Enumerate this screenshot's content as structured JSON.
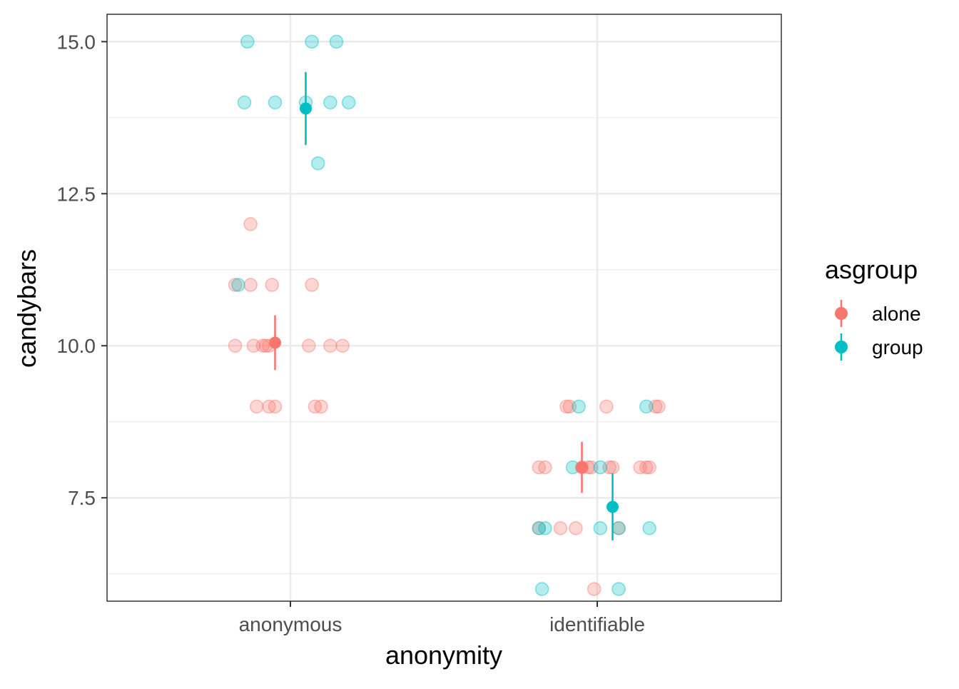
{
  "chart_data": {
    "type": "scatter",
    "xlabel": "anonymity",
    "ylabel": "candybars",
    "categories": [
      "anonymous",
      "identifiable"
    ],
    "ylim": [
      5.8,
      15.45
    ],
    "y_ticks": [
      7.5,
      10.0,
      12.5,
      15.0
    ],
    "y_tick_labels": [
      "7.5",
      "10.0",
      "12.5",
      "15.0"
    ],
    "grid": true,
    "legend": {
      "title": "asgroup",
      "position": "right"
    },
    "series": [
      {
        "name": "alone",
        "color": "#F8766D",
        "dodge": -0.05,
        "points": [
          {
            "x": "anonymous",
            "jitter": -0.18,
            "y": 11
          },
          {
            "x": "anonymous",
            "jitter": -0.13,
            "y": 12
          },
          {
            "x": "anonymous",
            "jitter": -0.13,
            "y": 11
          },
          {
            "x": "anonymous",
            "jitter": -0.06,
            "y": 11
          },
          {
            "x": "anonymous",
            "jitter": 0.07,
            "y": 11
          },
          {
            "x": "anonymous",
            "jitter": -0.18,
            "y": 10
          },
          {
            "x": "anonymous",
            "jitter": -0.12,
            "y": 10
          },
          {
            "x": "anonymous",
            "jitter": -0.09,
            "y": 10
          },
          {
            "x": "anonymous",
            "jitter": -0.08,
            "y": 10
          },
          {
            "x": "anonymous",
            "jitter": -0.07,
            "y": 10
          },
          {
            "x": "anonymous",
            "jitter": 0.06,
            "y": 10
          },
          {
            "x": "anonymous",
            "jitter": 0.13,
            "y": 10
          },
          {
            "x": "anonymous",
            "jitter": 0.17,
            "y": 10
          },
          {
            "x": "anonymous",
            "jitter": -0.11,
            "y": 9
          },
          {
            "x": "anonymous",
            "jitter": -0.07,
            "y": 9
          },
          {
            "x": "anonymous",
            "jitter": -0.05,
            "y": 9
          },
          {
            "x": "anonymous",
            "jitter": 0.08,
            "y": 9
          },
          {
            "x": "anonymous",
            "jitter": 0.1,
            "y": 9
          },
          {
            "x": "identifiable",
            "jitter": -0.1,
            "y": 9
          },
          {
            "x": "identifiable",
            "jitter": -0.09,
            "y": 9
          },
          {
            "x": "identifiable",
            "jitter": 0.03,
            "y": 9
          },
          {
            "x": "identifiable",
            "jitter": 0.19,
            "y": 9
          },
          {
            "x": "identifiable",
            "jitter": 0.2,
            "y": 9
          },
          {
            "x": "identifiable",
            "jitter": -0.19,
            "y": 8
          },
          {
            "x": "identifiable",
            "jitter": -0.17,
            "y": 8
          },
          {
            "x": "identifiable",
            "jitter": -0.05,
            "y": 8
          },
          {
            "x": "identifiable",
            "jitter": -0.03,
            "y": 8
          },
          {
            "x": "identifiable",
            "jitter": -0.02,
            "y": 8
          },
          {
            "x": "identifiable",
            "jitter": 0.04,
            "y": 8
          },
          {
            "x": "identifiable",
            "jitter": 0.05,
            "y": 8
          },
          {
            "x": "identifiable",
            "jitter": 0.14,
            "y": 8
          },
          {
            "x": "identifiable",
            "jitter": 0.16,
            "y": 8
          },
          {
            "x": "identifiable",
            "jitter": 0.17,
            "y": 8
          },
          {
            "x": "identifiable",
            "jitter": -0.19,
            "y": 7
          },
          {
            "x": "identifiable",
            "jitter": -0.12,
            "y": 7
          },
          {
            "x": "identifiable",
            "jitter": -0.07,
            "y": 7
          },
          {
            "x": "identifiable",
            "jitter": 0.07,
            "y": 7
          },
          {
            "x": "identifiable",
            "jitter": -0.01,
            "y": 6
          }
        ],
        "summary": [
          {
            "x": "anonymous",
            "mean": 10.05,
            "low": 9.6,
            "high": 10.5
          },
          {
            "x": "identifiable",
            "mean": 8.0,
            "low": 7.58,
            "high": 8.42
          }
        ]
      },
      {
        "name": "group",
        "color": "#00BFC4",
        "dodge": 0.05,
        "points": [
          {
            "x": "anonymous",
            "jitter": -0.14,
            "y": 15
          },
          {
            "x": "anonymous",
            "jitter": 0.07,
            "y": 15
          },
          {
            "x": "anonymous",
            "jitter": 0.15,
            "y": 15
          },
          {
            "x": "anonymous",
            "jitter": -0.15,
            "y": 14
          },
          {
            "x": "anonymous",
            "jitter": -0.05,
            "y": 14
          },
          {
            "x": "anonymous",
            "jitter": 0.05,
            "y": 14
          },
          {
            "x": "anonymous",
            "jitter": 0.13,
            "y": 14
          },
          {
            "x": "anonymous",
            "jitter": 0.19,
            "y": 14
          },
          {
            "x": "anonymous",
            "jitter": 0.09,
            "y": 13
          },
          {
            "x": "anonymous",
            "jitter": -0.17,
            "y": 11
          },
          {
            "x": "identifiable",
            "jitter": -0.06,
            "y": 9
          },
          {
            "x": "identifiable",
            "jitter": 0.16,
            "y": 9
          },
          {
            "x": "identifiable",
            "jitter": -0.08,
            "y": 8
          },
          {
            "x": "identifiable",
            "jitter": 0.01,
            "y": 8
          },
          {
            "x": "identifiable",
            "jitter": -0.19,
            "y": 7
          },
          {
            "x": "identifiable",
            "jitter": -0.17,
            "y": 7
          },
          {
            "x": "identifiable",
            "jitter": 0.01,
            "y": 7
          },
          {
            "x": "identifiable",
            "jitter": 0.07,
            "y": 7
          },
          {
            "x": "identifiable",
            "jitter": 0.17,
            "y": 7
          },
          {
            "x": "identifiable",
            "jitter": -0.18,
            "y": 6
          },
          {
            "x": "identifiable",
            "jitter": 0.07,
            "y": 6
          }
        ],
        "summary": [
          {
            "x": "anonymous",
            "mean": 13.9,
            "low": 13.3,
            "high": 14.5
          },
          {
            "x": "identifiable",
            "mean": 7.35,
            "low": 6.8,
            "high": 7.9
          }
        ]
      }
    ]
  }
}
